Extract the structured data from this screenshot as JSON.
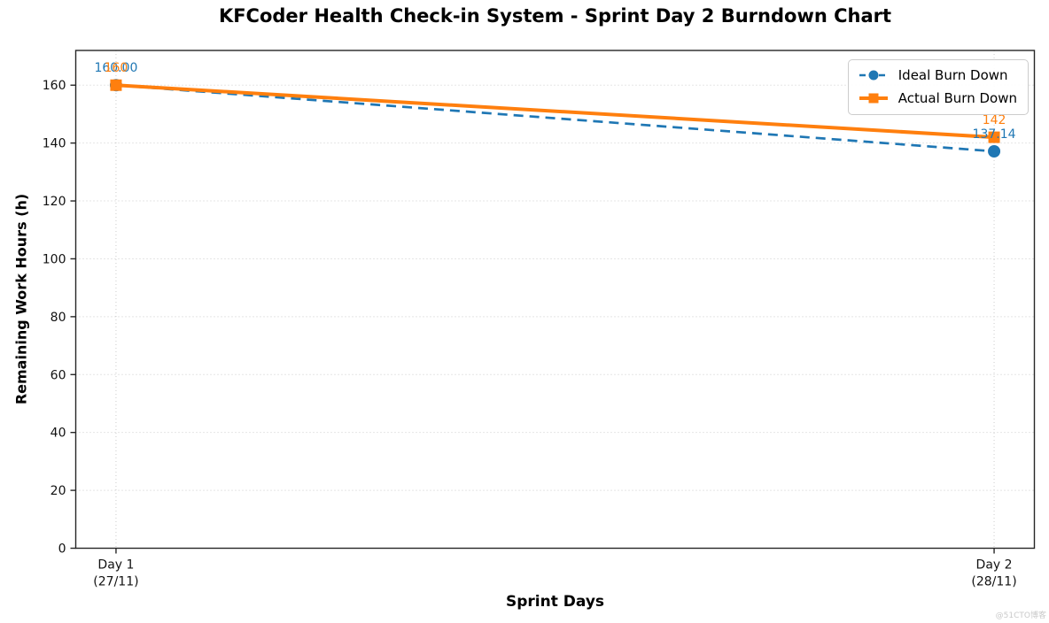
{
  "watermark": "@51CTO博客",
  "chart_data": {
    "type": "line",
    "title": "KFCoder Health Check-in System - Sprint Day 2 Burndown Chart",
    "xlabel": "Sprint Days",
    "ylabel": "Remaining Work Hours (h)",
    "categories": [
      "Day 1 (27/11)",
      "Day 2 (28/11)"
    ],
    "x_tick_labels": [
      [
        "Day 1",
        "(27/11)"
      ],
      [
        "Day 2",
        "(28/11)"
      ]
    ],
    "series": [
      {
        "name": "Ideal Burn Down",
        "values": [
          160.0,
          137.14
        ],
        "point_labels": [
          "160.00",
          "137.14"
        ],
        "color": "#1f77b4",
        "line_style": "dashed",
        "marker": "circle"
      },
      {
        "name": "Actual Burn Down",
        "values": [
          160,
          142
        ],
        "point_labels": [
          "160",
          "142"
        ],
        "color": "#ff7f0e",
        "line_style": "solid",
        "marker": "square"
      }
    ],
    "yticks": [
      0,
      20,
      40,
      60,
      80,
      100,
      120,
      140,
      160
    ],
    "ylim": [
      0,
      172
    ],
    "grid": true,
    "grid_style": "dotted",
    "legend_position": "upper right"
  }
}
